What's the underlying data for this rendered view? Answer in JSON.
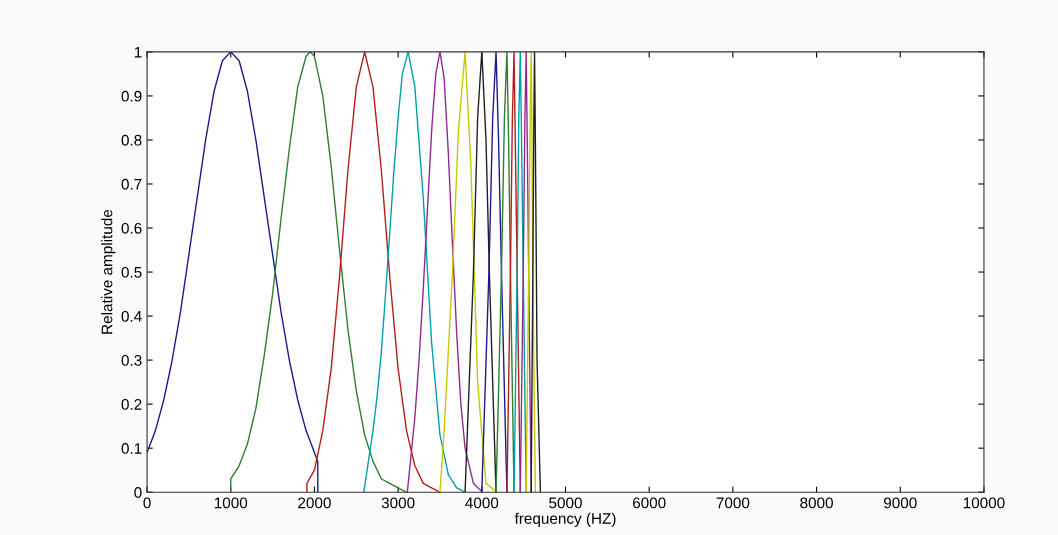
{
  "chart_data": {
    "type": "line",
    "xlabel": "frequency (HZ)",
    "ylabel": "Relative amplitude",
    "xlim": [
      0,
      10000
    ],
    "ylim": [
      0,
      1
    ],
    "xticks": [
      0,
      1000,
      2000,
      3000,
      4000,
      5000,
      6000,
      7000,
      8000,
      9000,
      10000
    ],
    "yticks": [
      0,
      0.1,
      0.2,
      0.3,
      0.4,
      0.5,
      0.6,
      0.7,
      0.8,
      0.9,
      1
    ],
    "grid": false,
    "marker": "none",
    "line_style": "solid",
    "series": [
      {
        "color": "#1a1a8c",
        "x": [
          0,
          100,
          200,
          300,
          400,
          500,
          600,
          700,
          800,
          900,
          1000,
          1100,
          1200,
          1300,
          1400,
          1500,
          1600,
          1700,
          1800,
          1900,
          2000,
          2040,
          2040
        ],
        "values": [
          0.09,
          0.14,
          0.21,
          0.3,
          0.41,
          0.54,
          0.67,
          0.8,
          0.91,
          0.98,
          1,
          0.98,
          0.91,
          0.8,
          0.67,
          0.54,
          0.41,
          0.3,
          0.21,
          0.14,
          0.09,
          0.07,
          0
        ]
      },
      {
        "color": "#2e7d32",
        "x": [
          1000,
          1000,
          1100,
          1200,
          1300,
          1400,
          1500,
          1600,
          1700,
          1800,
          1900,
          1950,
          2000,
          2100,
          2200,
          2300,
          2400,
          2500,
          2600,
          2700,
          2800,
          2900,
          3000,
          3100
        ],
        "values": [
          0,
          0.03,
          0.06,
          0.11,
          0.19,
          0.31,
          0.45,
          0.62,
          0.78,
          0.92,
          0.99,
          1,
          0.99,
          0.9,
          0.74,
          0.55,
          0.37,
          0.23,
          0.13,
          0.07,
          0.03,
          0.02,
          0.01,
          0
        ]
      },
      {
        "color": "#b71c1c",
        "x": [
          1910,
          1910,
          2000,
          2100,
          2200,
          2300,
          2400,
          2500,
          2600,
          2700,
          2800,
          2900,
          3000,
          3100,
          3200,
          3300,
          3400,
          3500
        ],
        "values": [
          0,
          0.02,
          0.05,
          0.14,
          0.28,
          0.49,
          0.73,
          0.92,
          1,
          0.92,
          0.73,
          0.49,
          0.28,
          0.14,
          0.06,
          0.02,
          0.01,
          0
        ]
      },
      {
        "color": "#00a0a8",
        "x": [
          2590,
          2700,
          2750,
          2800,
          2850,
          2900,
          2950,
          3000,
          3050,
          3120,
          3200,
          3300,
          3400,
          3500,
          3600,
          3700,
          3800
        ],
        "values": [
          0,
          0.14,
          0.22,
          0.32,
          0.45,
          0.59,
          0.73,
          0.85,
          0.95,
          1,
          0.92,
          0.67,
          0.34,
          0.13,
          0.04,
          0.01,
          0
        ]
      },
      {
        "color": "#8e2a8e",
        "x": [
          3110,
          3200,
          3250,
          3300,
          3350,
          3400,
          3450,
          3500,
          3550,
          3600,
          3650,
          3700,
          3750,
          3800,
          3900,
          4010
        ],
        "values": [
          0,
          0.17,
          0.3,
          0.46,
          0.64,
          0.82,
          0.95,
          1,
          0.94,
          0.77,
          0.56,
          0.36,
          0.2,
          0.1,
          0.02,
          0
        ]
      },
      {
        "color": "#c8c800",
        "x": [
          3500,
          3550,
          3650,
          3720,
          3800,
          3870,
          3950,
          4050,
          4180
        ],
        "values": [
          0,
          0.14,
          0.5,
          0.82,
          1,
          0.74,
          0.25,
          0.02,
          0
        ]
      },
      {
        "color": "#202020",
        "x": [
          3800,
          3900,
          3950,
          4000,
          4050,
          4090,
          4170
        ],
        "values": [
          0,
          0.5,
          0.85,
          1,
          0.8,
          0.5,
          0
        ]
      },
      {
        "color": "#1a1a8c",
        "x": [
          4000,
          4085,
          4130,
          4170,
          4200,
          4235,
          4300
        ],
        "values": [
          0,
          0.5,
          0.85,
          1,
          0.8,
          0.5,
          0
        ]
      },
      {
        "color": "#2e7d32",
        "x": [
          4170,
          4235,
          4270,
          4300,
          4320,
          4342,
          4385
        ],
        "values": [
          0,
          0.5,
          0.85,
          1,
          0.8,
          0.5,
          0
        ]
      },
      {
        "color": "#b71c1c",
        "x": [
          4300,
          4342,
          4365,
          4385,
          4400,
          4422,
          4460
        ],
        "values": [
          0,
          0.5,
          0.85,
          1,
          0.8,
          0.5,
          0
        ]
      },
      {
        "color": "#00a0a8",
        "x": [
          4385,
          4422,
          4442,
          4460,
          4475,
          4495,
          4530
        ],
        "values": [
          0,
          0.5,
          0.85,
          1,
          0.8,
          0.5,
          0
        ]
      },
      {
        "color": "#8e2a8e",
        "x": [
          4460,
          4495,
          4515,
          4530,
          4543,
          4560,
          4590
        ],
        "values": [
          0,
          0.5,
          0.85,
          1,
          0.8,
          0.5,
          0
        ]
      },
      {
        "color": "#c8c800",
        "x": [
          4530,
          4560,
          4578,
          4590,
          4600,
          4610,
          4640
        ],
        "values": [
          0,
          0.5,
          0.85,
          1,
          0.8,
          0.5,
          0
        ]
      },
      {
        "color": "#202020",
        "x": [
          4590,
          4610,
          4622,
          4630,
          4640,
          4660,
          4700
        ],
        "values": [
          0,
          0.5,
          0.85,
          1,
          0.8,
          0.3,
          0
        ]
      }
    ]
  }
}
